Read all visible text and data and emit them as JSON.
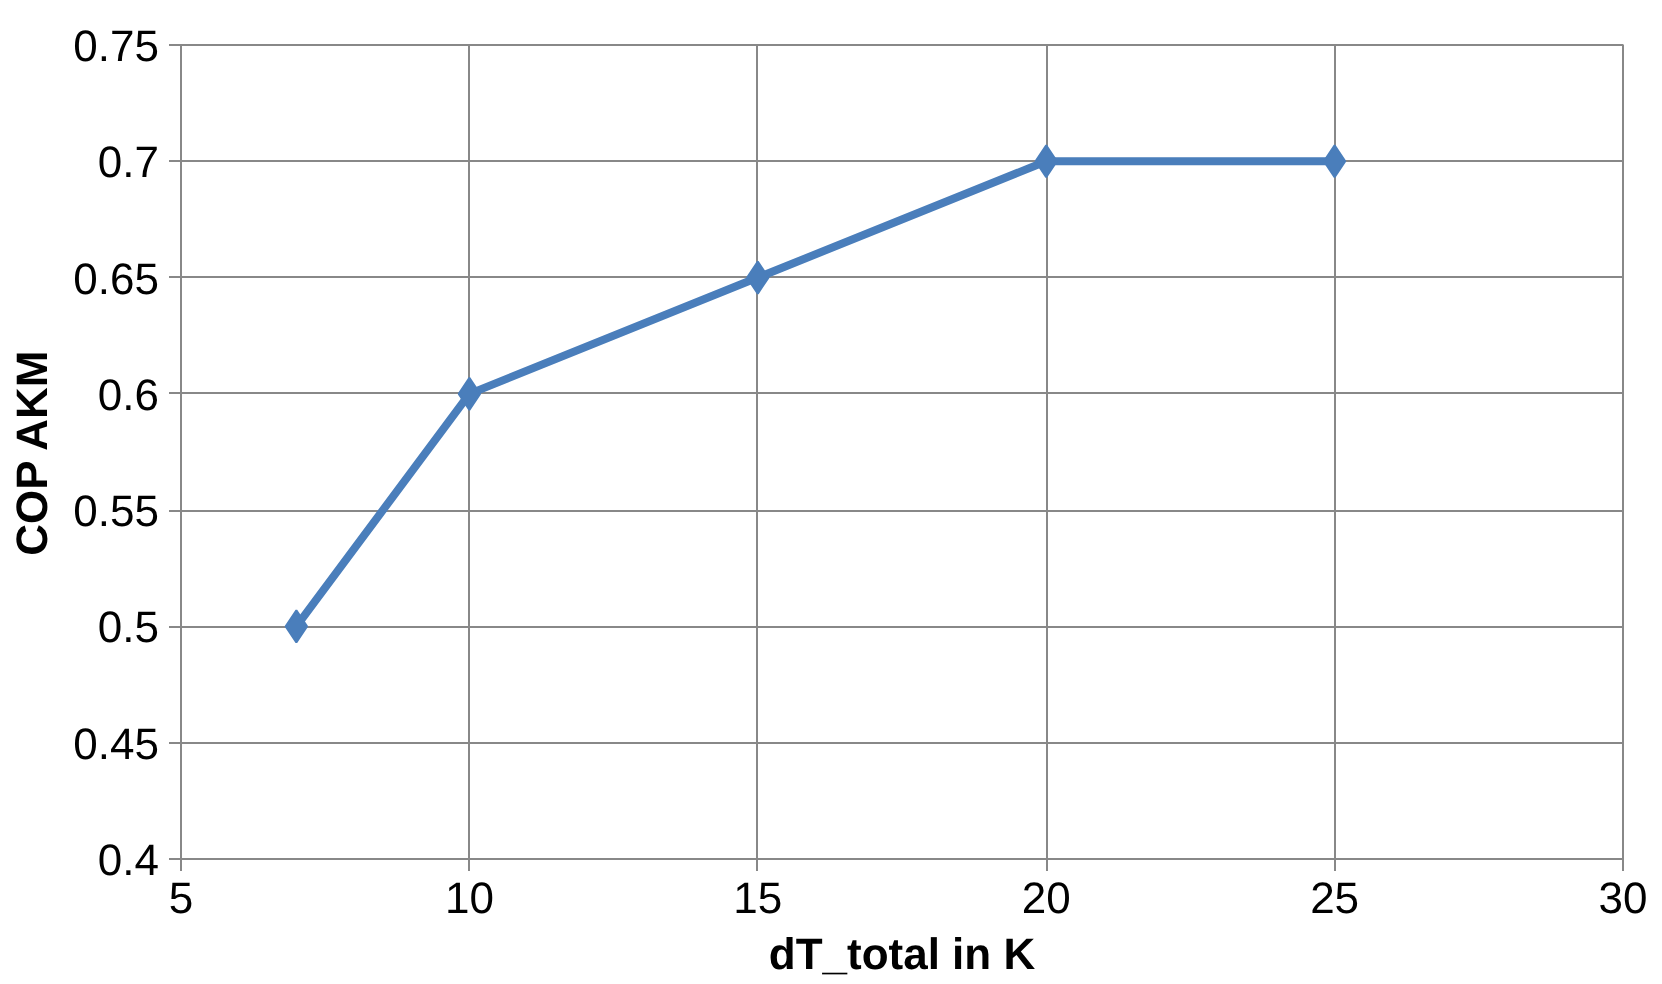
{
  "chart_data": {
    "type": "line",
    "xlabel": "dT_total in K",
    "ylabel": "COP AKM",
    "x": [
      7,
      10,
      15,
      20,
      25
    ],
    "series": [
      {
        "color": "#4a7ebb",
        "values": [
          0.5,
          0.6,
          0.65,
          0.7,
          0.7
        ]
      }
    ],
    "xlim": [
      5,
      30
    ],
    "xticks": [
      5,
      10,
      15,
      20,
      25,
      30
    ],
    "ylim": [
      0.4,
      0.75
    ],
    "yticks": [
      0.4,
      0.45,
      0.5,
      0.55,
      0.6,
      0.65,
      0.7,
      0.75
    ],
    "grid": true,
    "marker": "diamond",
    "line_style": "solid"
  }
}
